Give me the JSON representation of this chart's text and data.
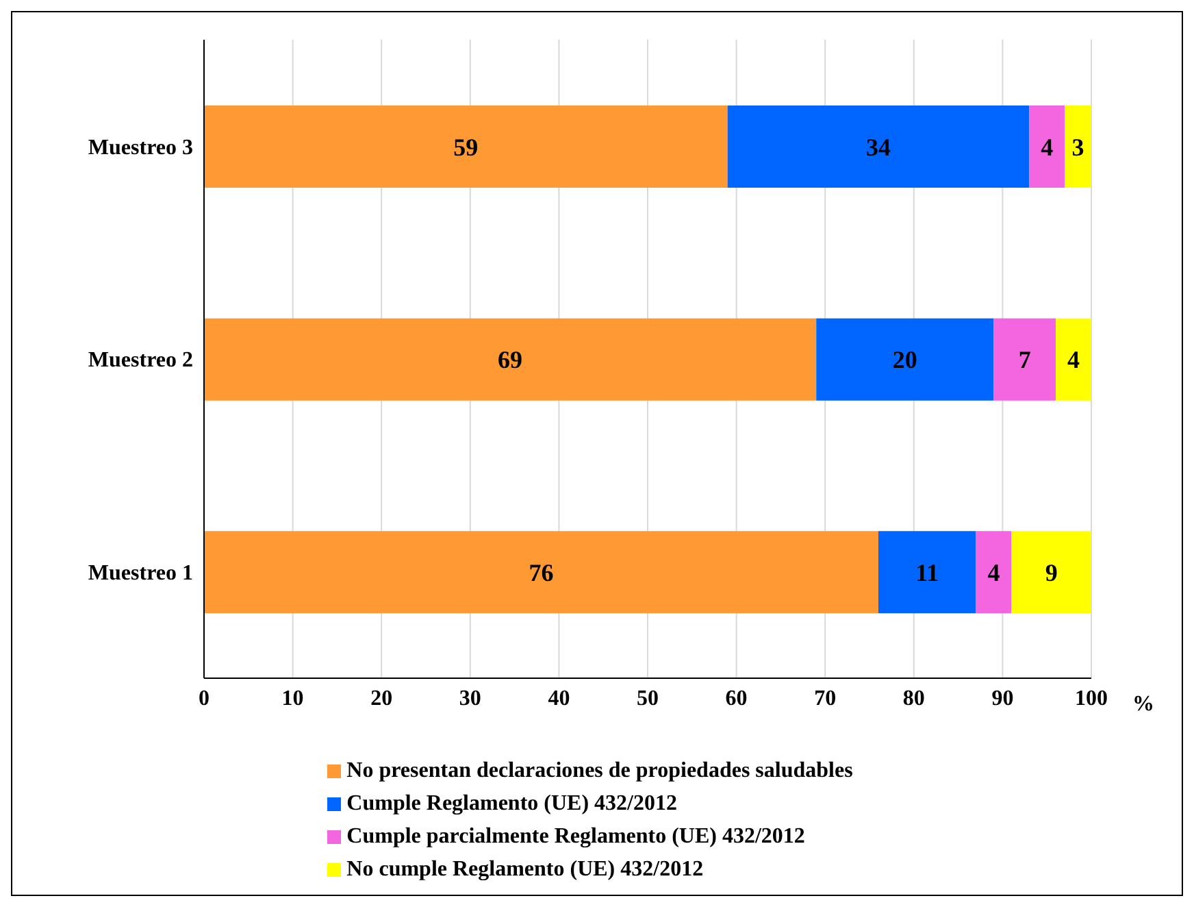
{
  "chart_data": {
    "type": "bar",
    "orientation": "horizontal",
    "stacked": true,
    "categories": [
      "Muestreo 3",
      "Muestreo 2",
      "Muestreo 1"
    ],
    "series": [
      {
        "name": "No presentan declaraciones de propiedades saludables",
        "color": "#ff9933",
        "values": [
          59,
          69,
          76
        ]
      },
      {
        "name": "Cumple Reglamento (UE) 432/2012",
        "color": "#0066ff",
        "values": [
          34,
          20,
          11
        ]
      },
      {
        "name": "Cumple parcialmente Reglamento (UE) 432/2012",
        "color": "#f366e0",
        "values": [
          4,
          7,
          4
        ]
      },
      {
        "name": "No cumple Reglamento (UE) 432/2012",
        "color": "#ffff00",
        "values": [
          3,
          4,
          9
        ]
      }
    ],
    "xlabel": "%",
    "xlim": [
      0,
      100
    ],
    "xticks": [
      0,
      10,
      20,
      30,
      40,
      50,
      60,
      70,
      80,
      90,
      100
    ],
    "grid": "x",
    "legend": "bottom",
    "data_labels": true
  }
}
